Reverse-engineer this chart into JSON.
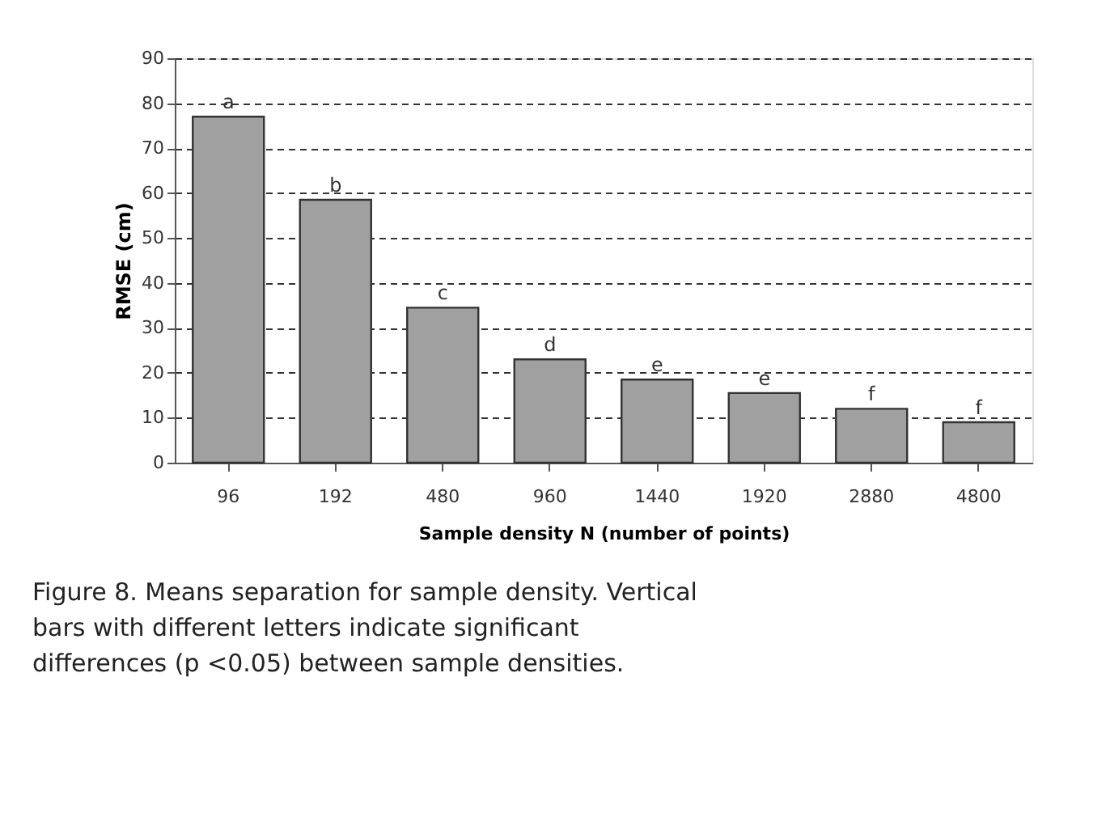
{
  "chart_data": {
    "type": "bar",
    "categories": [
      "96",
      "192",
      "480",
      "960",
      "1440",
      "1920",
      "2880",
      "4800"
    ],
    "values": [
      77,
      58.5,
      34.5,
      23,
      18.5,
      15.5,
      12,
      9
    ],
    "color": "#a0a0a0",
    "xlabel": "Sample density N (number of points)",
    "ylabel": "RMSE (cm)",
    "ylim": [
      0,
      90
    ],
    "yticks": [
      0,
      10,
      20,
      30,
      40,
      50,
      60,
      70,
      80,
      90
    ],
    "grid": "y",
    "annotations": [
      {
        "text": "a",
        "x": "96",
        "y": 77
      },
      {
        "text": "b",
        "x": "192",
        "y": 58.5
      },
      {
        "text": "c",
        "x": "480",
        "y": 34.5
      },
      {
        "text": "d",
        "x": "960",
        "y": 23
      },
      {
        "text": "e",
        "x": "1440",
        "y": 18.5
      },
      {
        "text": "e",
        "x": "1920",
        "y": 15.5
      },
      {
        "text": "f",
        "x": "2880",
        "y": 12
      },
      {
        "text": "f",
        "x": "4800",
        "y": 9
      },
      "Figure 8. Means separation for sample density. Vertical bars with different letters indicate significant differences (p <0.05) between sample densities."
    ]
  }
}
